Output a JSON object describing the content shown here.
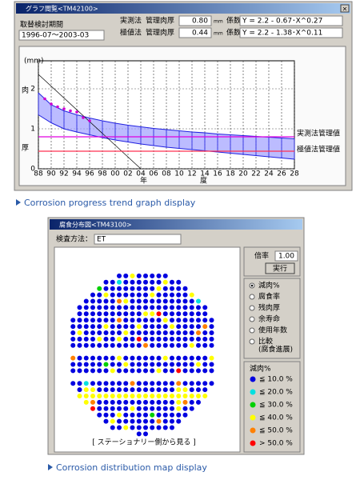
{
  "trend_window": {
    "title": "グラフ閲覧<TM42100>",
    "period_label": "取替検討期間",
    "period": "1996-07～2003-03",
    "methods": [
      {
        "name": "実測法",
        "thickness_label": "管理肉厚",
        "thickness": "0.80",
        "unit": "mm",
        "coef_label": "係数",
        "formula": "Y = 2.2 - 0.67･X^0.27"
      },
      {
        "name": "極値法",
        "thickness_label": "管理肉厚",
        "thickness": "0.44",
        "unit": "mm",
        "coef_label": "係数",
        "formula": "Y = 2.2 - 1.38･X^0.11"
      }
    ],
    "chart": {
      "type": "area",
      "y_unit": "(mm)",
      "y_label": [
        "肉",
        "厚"
      ],
      "x_label": [
        "年",
        "度"
      ],
      "xlim": [
        1988,
        2028
      ],
      "ylim": [
        0,
        2.7
      ],
      "grid": true,
      "xticks": [
        {
          "value": 1988,
          "label": "88"
        },
        {
          "value": 1990,
          "label": "90"
        },
        {
          "value": 1992,
          "label": "92"
        },
        {
          "value": 1994,
          "label": "94"
        },
        {
          "value": 1996,
          "label": "96"
        },
        {
          "value": 1998,
          "label": "98"
        },
        {
          "value": 2000,
          "label": "00"
        },
        {
          "value": 2002,
          "label": "02"
        },
        {
          "value": 2004,
          "label": "04"
        },
        {
          "value": 2006,
          "label": "06"
        },
        {
          "value": 2008,
          "label": "08"
        },
        {
          "value": 2010,
          "label": "10"
        },
        {
          "value": 2012,
          "label": "12"
        },
        {
          "value": 2014,
          "label": "14"
        },
        {
          "value": 2016,
          "label": "16"
        },
        {
          "value": 2018,
          "label": "18"
        },
        {
          "value": 2020,
          "label": "20"
        },
        {
          "value": 2022,
          "label": "22"
        },
        {
          "value": 2024,
          "label": "24"
        },
        {
          "value": 2026,
          "label": "26"
        },
        {
          "value": 2028,
          "label": "28"
        }
      ],
      "yticks": [
        0,
        1,
        2
      ],
      "x": [
        1988,
        1990,
        1992,
        1994,
        1996,
        1998,
        2000,
        2002,
        2004,
        2006,
        2008,
        2010,
        2012,
        2014,
        2016,
        2018,
        2020,
        2022,
        2024,
        2026,
        2028
      ],
      "upper": {
        "color": "#2020e0",
        "values": [
          1.9,
          1.6,
          1.45,
          1.35,
          1.27,
          1.2,
          1.14,
          1.09,
          1.05,
          1.01,
          0.98,
          0.95,
          0.92,
          0.9,
          0.87,
          0.85,
          0.83,
          0.81,
          0.79,
          0.77,
          0.75
        ]
      },
      "lower": {
        "color": "#2020e0",
        "values": [
          1.35,
          1.15,
          1.0,
          0.92,
          0.85,
          0.78,
          0.72,
          0.67,
          0.62,
          0.58,
          0.54,
          0.51,
          0.48,
          0.45,
          0.42,
          0.39,
          0.36,
          0.33,
          0.3,
          0.27,
          0.24
        ]
      },
      "points": {
        "color": "#d000d0",
        "x": [
          1989,
          1990,
          1991,
          1992,
          1993,
          1994,
          1995,
          1996
        ],
        "values": [
          1.75,
          1.62,
          1.55,
          1.5,
          1.45,
          1.42,
          1.28,
          1.2
        ]
      },
      "reference_lines": [
        {
          "label": "実測法管理値",
          "value": 0.8,
          "color": "#e000e0"
        },
        {
          "label": "極値法管理値",
          "value": 0.44,
          "color": "#ff3050"
        }
      ]
    },
    "caption": "Corrosion progress trend graph display"
  },
  "map_window": {
    "title": "腐食分布図<TM43100>",
    "method_label": "検査方法：",
    "method": "ET",
    "scale_label": "倍率",
    "scale": "1.00",
    "run_button": "実行",
    "options": [
      "減肉%",
      "腐食率",
      "残肉厚",
      "余寿命",
      "使用年数",
      "比較",
      "(腐食進展)"
    ],
    "legend_title": "減肉%",
    "legend": [
      {
        "label": "≦ 10.0 %",
        "color": "#0000e0"
      },
      {
        "label": "≦ 20.0 %",
        "color": "#00e0e0"
      },
      {
        "label": "≦ 30.0 %",
        "color": "#00d000"
      },
      {
        "label": "≦ 40.0 %",
        "color": "#ffff00"
      },
      {
        "label": "≦ 50.0 %",
        "color": "#ff8000"
      },
      {
        "label": "> 50.0 %",
        "color": "#ff0000"
      }
    ],
    "view_note": "[ ステーショナリー側から見る ]",
    "caption": "Corrosion distribution map display"
  }
}
